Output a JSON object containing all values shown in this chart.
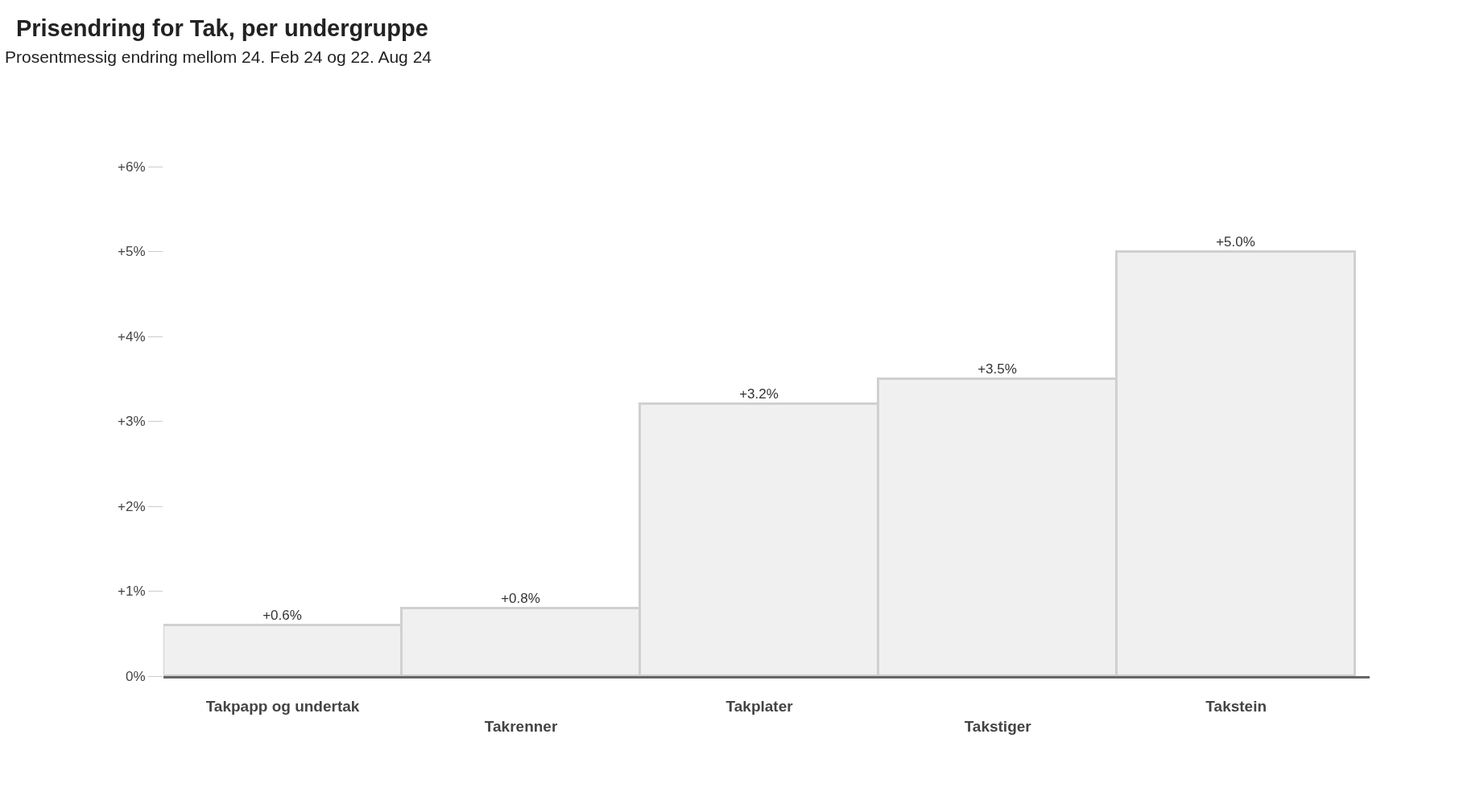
{
  "chart_data": {
    "type": "bar",
    "title": "Prisendring for Tak, per undergruppe",
    "subtitle": "Prosentmessig endring mellom 24. Feb 24 og 22. Aug 24",
    "categories": [
      "Takpapp og undertak",
      "Takrenner",
      "Takplater",
      "Takstiger",
      "Takstein"
    ],
    "values": [
      0.6,
      0.8,
      3.2,
      3.5,
      5.0
    ],
    "value_labels": [
      "+0.6%",
      "+0.8%",
      "+3.2%",
      "+3.5%",
      "+5.0%"
    ],
    "color": "#f0f0f0",
    "ylim": [
      0,
      6
    ],
    "yticks": [
      {
        "value": 0,
        "label": "0%"
      },
      {
        "value": 1,
        "label": "+1%"
      },
      {
        "value": 2,
        "label": "+2%"
      },
      {
        "value": 3,
        "label": "+3%"
      },
      {
        "value": 4,
        "label": "+4%"
      },
      {
        "value": 5,
        "label": "+5%"
      },
      {
        "value": 6,
        "label": "+6%"
      }
    ],
    "legend": false
  }
}
